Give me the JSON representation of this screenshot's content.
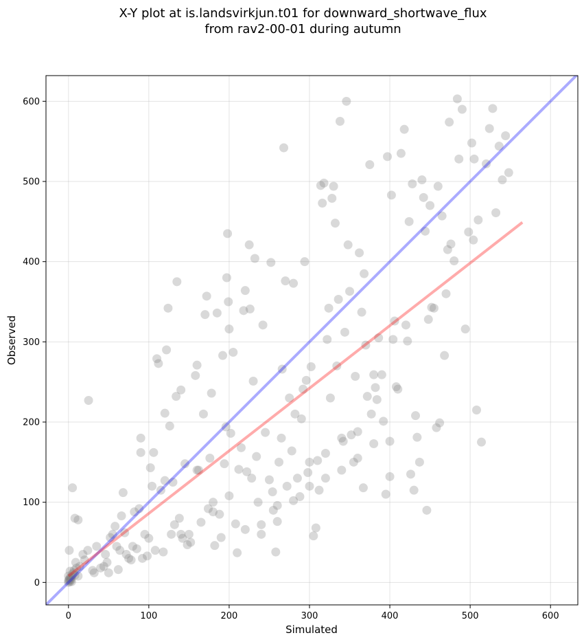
{
  "chart_data": {
    "type": "scatter",
    "title_line1": "X-Y plot at is.landsvirkjun.t01 for downward_shortwave_flux",
    "title_line2": "from rav2-00-01 during autumn",
    "xlabel": "Simulated",
    "ylabel": "Observed",
    "xlim": [
      -28,
      634
    ],
    "ylim": [
      -28,
      632
    ],
    "xticks": [
      "0",
      "100",
      "200",
      "300",
      "400",
      "500",
      "600"
    ],
    "yticks": [
      "0",
      "100",
      "200",
      "300",
      "400",
      "500",
      "600"
    ],
    "grid": true,
    "point_color": "#808080",
    "one_to_one_color": "#0000ff",
    "fit_color": "#ff0000",
    "fit_line": {
      "x": [
        0,
        565
      ],
      "y": [
        8,
        449
      ]
    },
    "one_to_one_line": {
      "x": [
        -28,
        634
      ],
      "y": [
        -28,
        634
      ]
    },
    "points": [
      [
        0,
        2
      ],
      [
        1,
        4
      ],
      [
        2,
        6
      ],
      [
        3,
        3
      ],
      [
        0,
        8
      ],
      [
        5,
        10
      ],
      [
        4,
        1
      ],
      [
        2,
        14
      ],
      [
        1,
        3
      ],
      [
        3,
        5
      ],
      [
        6,
        12
      ],
      [
        8,
        9
      ],
      [
        0,
        0
      ],
      [
        2,
        1
      ],
      [
        4,
        7
      ],
      [
        7,
        15
      ],
      [
        10,
        18
      ],
      [
        12,
        8
      ],
      [
        9,
        25
      ],
      [
        14,
        20
      ],
      [
        1,
        40
      ],
      [
        8,
        80
      ],
      [
        12,
        78
      ],
      [
        5,
        118
      ],
      [
        20,
        28
      ],
      [
        24,
        40
      ],
      [
        18,
        35
      ],
      [
        30,
        15
      ],
      [
        32,
        12
      ],
      [
        35,
        45
      ],
      [
        40,
        18
      ],
      [
        44,
        20
      ],
      [
        46,
        35
      ],
      [
        48,
        25
      ],
      [
        50,
        12
      ],
      [
        52,
        56
      ],
      [
        55,
        60
      ],
      [
        58,
        70
      ],
      [
        60,
        45
      ],
      [
        62,
        16
      ],
      [
        64,
        40
      ],
      [
        66,
        83
      ],
      [
        68,
        112
      ],
      [
        70,
        62
      ],
      [
        72,
        35
      ],
      [
        75,
        30
      ],
      [
        78,
        28
      ],
      [
        80,
        45
      ],
      [
        82,
        88
      ],
      [
        85,
        42
      ],
      [
        88,
        92
      ],
      [
        90,
        162
      ],
      [
        92,
        30
      ],
      [
        95,
        60
      ],
      [
        98,
        33
      ],
      [
        100,
        55
      ],
      [
        102,
        143
      ],
      [
        104,
        120
      ],
      [
        106,
        162
      ],
      [
        108,
        40
      ],
      [
        110,
        279
      ],
      [
        112,
        273
      ],
      [
        115,
        115
      ],
      [
        118,
        38
      ],
      [
        120,
        211
      ],
      [
        122,
        290
      ],
      [
        124,
        342
      ],
      [
        126,
        195
      ],
      [
        128,
        60
      ],
      [
        130,
        125
      ],
      [
        132,
        72
      ],
      [
        134,
        232
      ],
      [
        135,
        375
      ],
      [
        138,
        80
      ],
      [
        140,
        240
      ],
      [
        142,
        55
      ],
      [
        145,
        148
      ],
      [
        148,
        47
      ],
      [
        150,
        60
      ],
      [
        152,
        50
      ],
      [
        158,
        258
      ],
      [
        160,
        271
      ],
      [
        162,
        140
      ],
      [
        165,
        75
      ],
      [
        168,
        210
      ],
      [
        170,
        334
      ],
      [
        172,
        357
      ],
      [
        174,
        92
      ],
      [
        176,
        155
      ],
      [
        178,
        236
      ],
      [
        180,
        100
      ],
      [
        182,
        46
      ],
      [
        185,
        336
      ],
      [
        188,
        85
      ],
      [
        190,
        56
      ],
      [
        192,
        283
      ],
      [
        194,
        148
      ],
      [
        196,
        194
      ],
      [
        197,
        380
      ],
      [
        198,
        435
      ],
      [
        199,
        350
      ],
      [
        200,
        316
      ],
      [
        202,
        186
      ],
      [
        205,
        287
      ],
      [
        208,
        73
      ],
      [
        210,
        37
      ],
      [
        212,
        141
      ],
      [
        215,
        168
      ],
      [
        218,
        339
      ],
      [
        220,
        364
      ],
      [
        222,
        138
      ],
      [
        225,
        421
      ],
      [
        226,
        341
      ],
      [
        228,
        130
      ],
      [
        230,
        251
      ],
      [
        232,
        404
      ],
      [
        234,
        157
      ],
      [
        236,
        100
      ],
      [
        240,
        60
      ],
      [
        242,
        321
      ],
      [
        245,
        187
      ],
      [
        250,
        128
      ],
      [
        252,
        399
      ],
      [
        254,
        113
      ],
      [
        255,
        90
      ],
      [
        258,
        38
      ],
      [
        260,
        76
      ],
      [
        262,
        150
      ],
      [
        265,
        180
      ],
      [
        266,
        266
      ],
      [
        268,
        542
      ],
      [
        270,
        376
      ],
      [
        272,
        120
      ],
      [
        275,
        230
      ],
      [
        278,
        164
      ],
      [
        280,
        373
      ],
      [
        282,
        210
      ],
      [
        285,
        130
      ],
      [
        288,
        107
      ],
      [
        290,
        204
      ],
      [
        292,
        241
      ],
      [
        294,
        400
      ],
      [
        296,
        252
      ],
      [
        298,
        137
      ],
      [
        300,
        150
      ],
      [
        302,
        269
      ],
      [
        305,
        58
      ],
      [
        308,
        68
      ],
      [
        310,
        152
      ],
      [
        312,
        115
      ],
      [
        314,
        495
      ],
      [
        316,
        473
      ],
      [
        318,
        498
      ],
      [
        320,
        161
      ],
      [
        322,
        303
      ],
      [
        324,
        342
      ],
      [
        326,
        230
      ],
      [
        328,
        479
      ],
      [
        330,
        494
      ],
      [
        332,
        448
      ],
      [
        334,
        270
      ],
      [
        336,
        353
      ],
      [
        338,
        575
      ],
      [
        340,
        180
      ],
      [
        342,
        176
      ],
      [
        344,
        312
      ],
      [
        346,
        600
      ],
      [
        348,
        421
      ],
      [
        350,
        363
      ],
      [
        352,
        184
      ],
      [
        355,
        150
      ],
      [
        357,
        257
      ],
      [
        360,
        155
      ],
      [
        362,
        411
      ],
      [
        365,
        337
      ],
      [
        367,
        118
      ],
      [
        368,
        385
      ],
      [
        370,
        296
      ],
      [
        372,
        232
      ],
      [
        375,
        521
      ],
      [
        377,
        210
      ],
      [
        380,
        259
      ],
      [
        382,
        243
      ],
      [
        384,
        228
      ],
      [
        386,
        305
      ],
      [
        390,
        259
      ],
      [
        392,
        201
      ],
      [
        395,
        110
      ],
      [
        397,
        531
      ],
      [
        400,
        132
      ],
      [
        402,
        483
      ],
      [
        404,
        303
      ],
      [
        406,
        326
      ],
      [
        408,
        244
      ],
      [
        410,
        241
      ],
      [
        414,
        535
      ],
      [
        418,
        565
      ],
      [
        420,
        321
      ],
      [
        422,
        301
      ],
      [
        424,
        450
      ],
      [
        426,
        135
      ],
      [
        428,
        497
      ],
      [
        430,
        115
      ],
      [
        432,
        208
      ],
      [
        434,
        181
      ],
      [
        437,
        150
      ],
      [
        440,
        502
      ],
      [
        442,
        480
      ],
      [
        444,
        438
      ],
      [
        446,
        90
      ],
      [
        448,
        328
      ],
      [
        450,
        470
      ],
      [
        452,
        343
      ],
      [
        455,
        342
      ],
      [
        458,
        193
      ],
      [
        460,
        494
      ],
      [
        462,
        199
      ],
      [
        465,
        457
      ],
      [
        468,
        283
      ],
      [
        470,
        360
      ],
      [
        472,
        415
      ],
      [
        474,
        574
      ],
      [
        476,
        422
      ],
      [
        480,
        401
      ],
      [
        484,
        603
      ],
      [
        486,
        528
      ],
      [
        490,
        590
      ],
      [
        494,
        316
      ],
      [
        498,
        437
      ],
      [
        502,
        548
      ],
      [
        504,
        427
      ],
      [
        508,
        215
      ],
      [
        510,
        452
      ],
      [
        514,
        175
      ],
      [
        520,
        522
      ],
      [
        524,
        566
      ],
      [
        528,
        591
      ],
      [
        532,
        461
      ],
      [
        536,
        544
      ],
      [
        540,
        502
      ],
      [
        544,
        557
      ],
      [
        548,
        511
      ],
      [
        505,
        528
      ],
      [
        25,
        227
      ],
      [
        90,
        180
      ],
      [
        120,
        127
      ],
      [
        140,
        60
      ],
      [
        160,
        140
      ],
      [
        180,
        88
      ],
      [
        200,
        108
      ],
      [
        220,
        66
      ],
      [
        240,
        72
      ],
      [
        260,
        96
      ],
      [
        280,
        102
      ],
      [
        300,
        120
      ],
      [
        320,
        130
      ],
      [
        340,
        140
      ],
      [
        360,
        188
      ],
      [
        380,
        173
      ],
      [
        400,
        176
      ]
    ]
  }
}
